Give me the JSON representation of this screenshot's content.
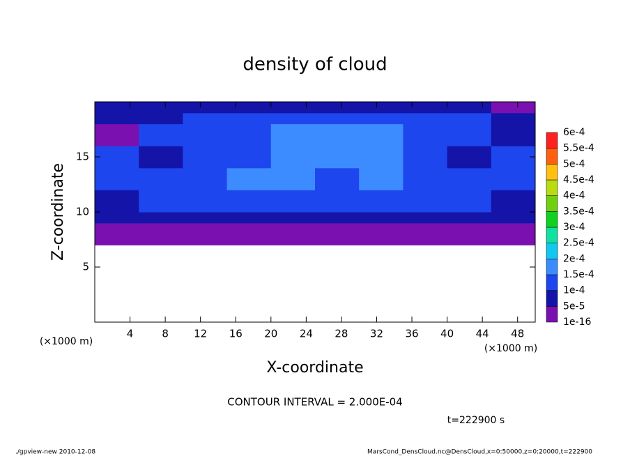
{
  "chart_data": {
    "type": "contour",
    "title": "density of cloud",
    "x_label": "X-coordinate",
    "y_label": "Z-coordinate",
    "x_unit": "(×1000 m)",
    "y_unit": "(×1000 m)",
    "contour_interval": "CONTOUR INTERVAL = 2.000E-04",
    "time_label": "t=222900 s",
    "footer_left": "./gpview-new   2010-12-08",
    "footer_right": "MarsCond_DensCloud.nc@DensCloud,x=0:50000,z=0:20000,t=222900",
    "xlim": [
      0,
      50
    ],
    "ylim": [
      0,
      20
    ],
    "xticks": [
      4,
      8,
      12,
      16,
      20,
      24,
      28,
      32,
      36,
      40,
      44,
      48
    ],
    "yticks": [
      5,
      10,
      15
    ],
    "x_edges": [
      0,
      5,
      10,
      15,
      20,
      25,
      30,
      35,
      40,
      45,
      50
    ],
    "z_edges": [
      7,
      8,
      9,
      10,
      12,
      14,
      16,
      18,
      19,
      20
    ],
    "values": [
      [
        2e-05,
        2e-05,
        2e-05,
        2e-05,
        2e-05,
        2e-05,
        2e-05,
        2e-05,
        2e-05,
        2e-05
      ],
      [
        4e-05,
        4e-05,
        4e-05,
        4e-05,
        4e-05,
        4e-05,
        4e-05,
        4e-05,
        4e-05,
        4e-05
      ],
      [
        7e-05,
        7e-05,
        7e-05,
        7e-05,
        7e-05,
        7e-05,
        7e-05,
        7e-05,
        7e-05,
        7e-05
      ],
      [
        9e-05,
        0.00012,
        0.00011,
        0.00012,
        0.00013,
        0.00012,
        0.00011,
        0.00012,
        0.0001,
        9e-05
      ],
      [
        0.00013,
        0.00013,
        0.00012,
        0.00016,
        0.00017,
        0.00014,
        0.00015,
        0.00013,
        0.00012,
        0.00011
      ],
      [
        0.00012,
        8e-05,
        0.00013,
        0.00014,
        0.00016,
        0.00017,
        0.00016,
        0.00014,
        8e-05,
        0.00012
      ],
      [
        3e-05,
        0.0001,
        0.00012,
        0.00014,
        0.00015,
        0.00017,
        0.00016,
        0.00013,
        0.00011,
        8e-05
      ],
      [
        8e-05,
        9e-05,
        0.0001,
        0.00012,
        0.00011,
        0.00012,
        0.00011,
        0.00011,
        0.0001,
        7e-05
      ],
      [
        6e-05,
        7e-05,
        8e-05,
        8e-05,
        9e-05,
        9e-05,
        8e-05,
        8e-05,
        7e-05,
        3e-05
      ]
    ],
    "levels": [
      {
        "value": 1e-16,
        "label": "1e-16"
      },
      {
        "value": 5e-05,
        "label": "5e-5"
      },
      {
        "value": 0.0001,
        "label": "1e-4"
      },
      {
        "value": 0.00015,
        "label": "1.5e-4"
      },
      {
        "value": 0.0002,
        "label": "2e-4"
      },
      {
        "value": 0.00025,
        "label": "2.5e-4"
      },
      {
        "value": 0.0003,
        "label": "3e-4"
      },
      {
        "value": 0.00035,
        "label": "3.5e-4"
      },
      {
        "value": 0.0004,
        "label": "4e-4"
      },
      {
        "value": 0.00045,
        "label": "4.5e-4"
      },
      {
        "value": 0.0005,
        "label": "5e-4"
      },
      {
        "value": 0.00055,
        "label": "5.5e-4"
      },
      {
        "value": 0.0006,
        "label": "6e-4"
      }
    ],
    "colors": [
      "#7a10b0",
      "#1414a8",
      "#1e46ee",
      "#3c8cff",
      "#12c8f0",
      "#10e0a0",
      "#10d020",
      "#70d010",
      "#b8dc10",
      "#ffc010",
      "#ff6010",
      "#ff2020"
    ]
  }
}
